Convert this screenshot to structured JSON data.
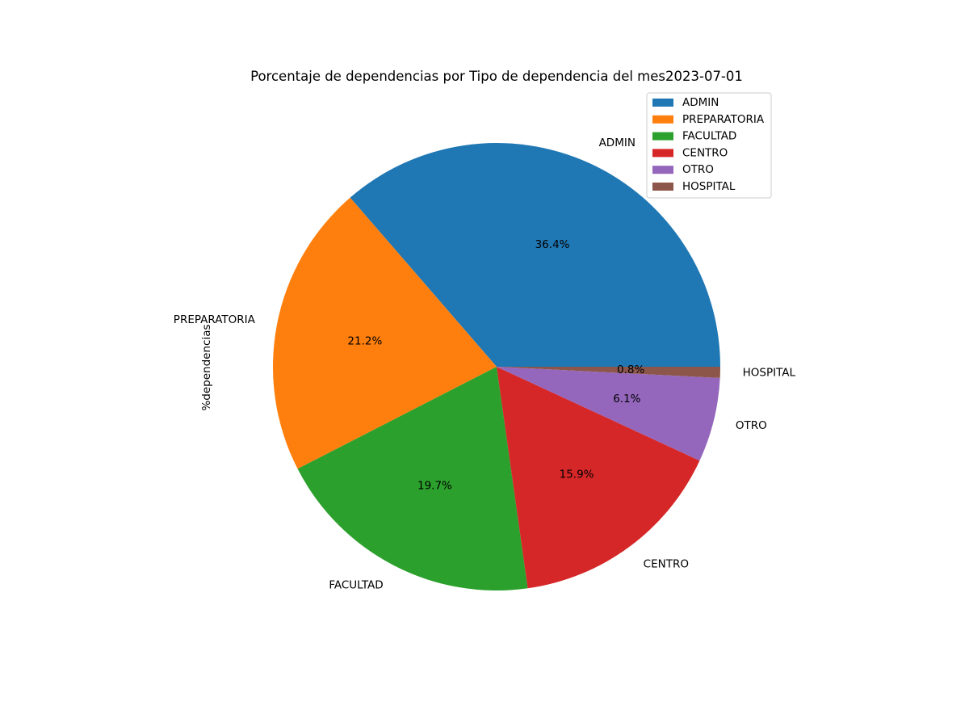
{
  "chart_data": {
    "type": "pie",
    "title": "Porcentaje de dependencias por Tipo de dependencia del mes2023-07-01",
    "ylabel": "%dependencias",
    "legend_position": "top-right",
    "categories": [
      "ADMIN",
      "PREPARATORIA",
      "FACULTAD",
      "CENTRO",
      "OTRO",
      "HOSPITAL"
    ],
    "values": [
      36.4,
      21.2,
      19.7,
      15.9,
      6.1,
      0.8
    ],
    "value_labels": [
      "36.4%",
      "21.2%",
      "19.7%",
      "15.9%",
      "6.1%",
      "0.8%"
    ],
    "colors": [
      "#1f77b4",
      "#ff7f0e",
      "#2ca02c",
      "#d62728",
      "#9467bd",
      "#8c564b"
    ],
    "start_angle_deg": 0,
    "direction": "counterclockwise"
  }
}
